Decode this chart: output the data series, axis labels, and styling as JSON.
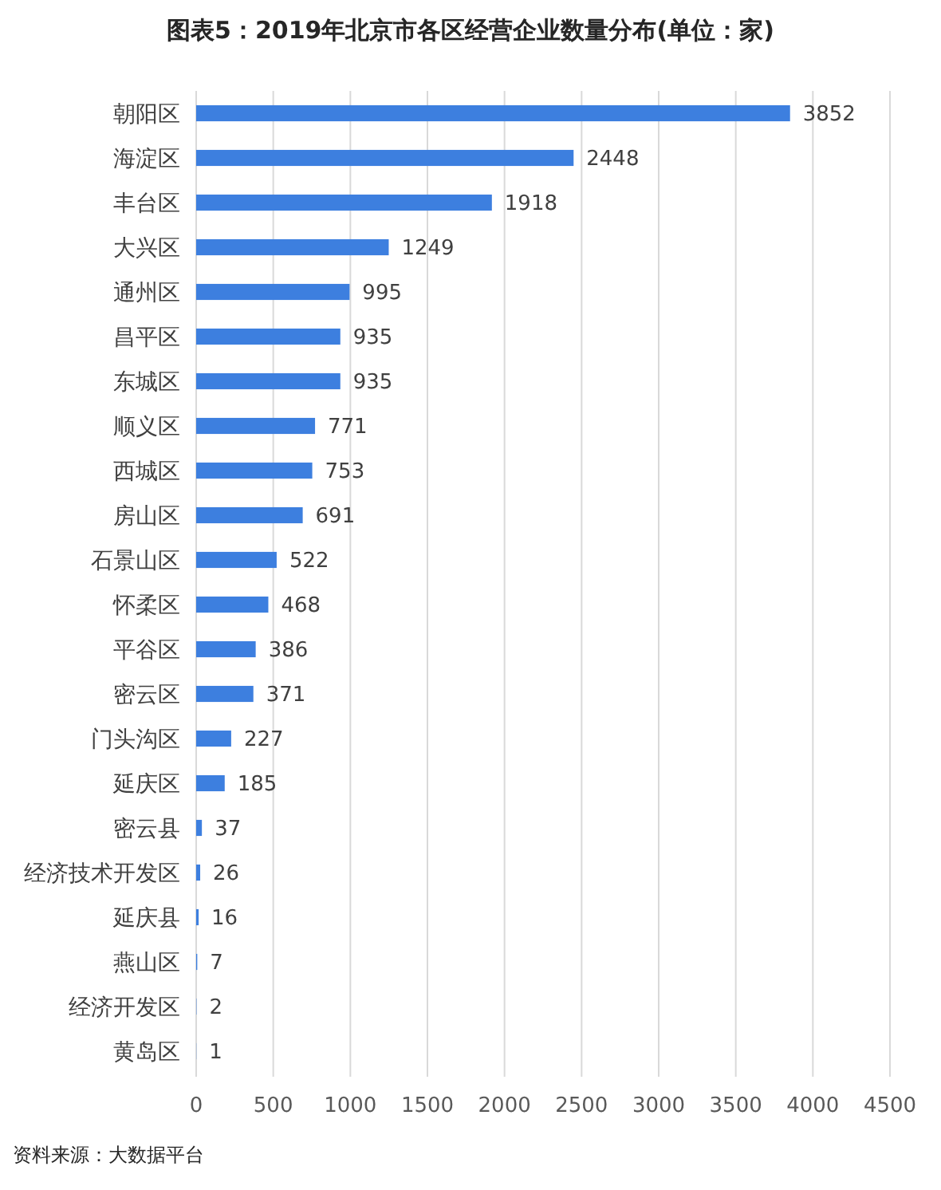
{
  "chart_data": {
    "type": "bar",
    "orientation": "horizontal",
    "title": "图表5：2019年北京市各区经营企业数量分布(单位：家)",
    "categories": [
      "朝阳区",
      "海淀区",
      "丰台区",
      "大兴区",
      "通州区",
      "昌平区",
      "东城区",
      "顺义区",
      "西城区",
      "房山区",
      "石景山区",
      "怀柔区",
      "平谷区",
      "密云区",
      "门头沟区",
      "延庆区",
      "密云县",
      "经济技术开发区",
      "延庆县",
      "燕山区",
      "经济开发区",
      "黄岛区"
    ],
    "values": [
      3852,
      2448,
      1918,
      1249,
      995,
      935,
      935,
      771,
      753,
      691,
      522,
      468,
      386,
      371,
      227,
      185,
      37,
      26,
      16,
      7,
      2,
      1
    ],
    "color": "#3d7fdf",
    "xlim": [
      0,
      4500
    ],
    "xticks": [
      0,
      500,
      1000,
      1500,
      2000,
      2500,
      3000,
      3500,
      4000,
      4500
    ],
    "grid": "x",
    "data_labels": true,
    "annotations": [
      "资料来源：大数据平台"
    ]
  }
}
